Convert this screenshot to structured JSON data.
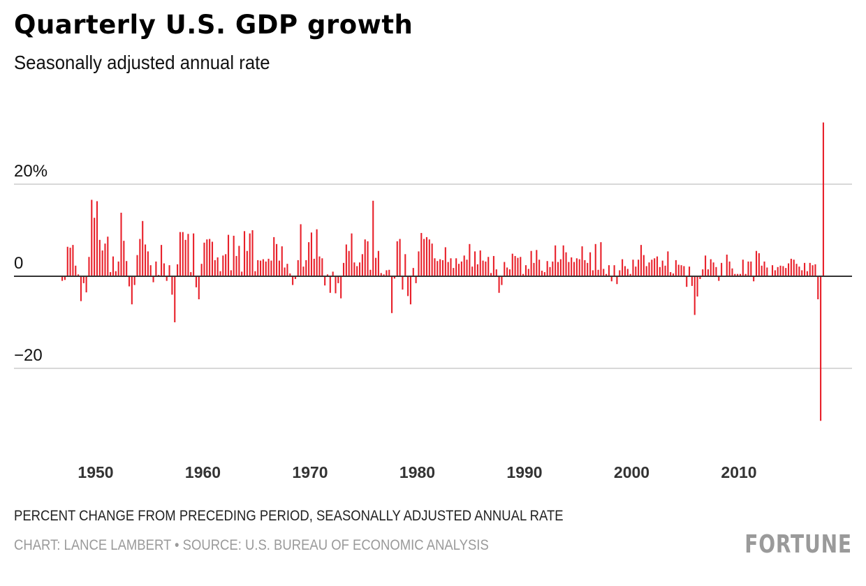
{
  "header": {
    "title": "Quarterly U.S. GDP growth",
    "subtitle": "Seasonally adjusted annual rate"
  },
  "footer": {
    "note": "PERCENT CHANGE FROM PRECEDING PERIOD, SEASONALLY ADJUSTED ANNUAL RATE",
    "source": "CHART: LANCE LAMBERT • SOURCE: U.S. BUREAU OF ECONOMIC ANALYSIS",
    "logo": "FORTUNE"
  },
  "colors": {
    "bar": "#e8202a",
    "grid": "#cccccc",
    "zero": "#333333"
  },
  "chart_data": {
    "type": "bar",
    "title": "Quarterly U.S. GDP growth",
    "subtitle": "Seasonally adjusted annual rate",
    "xlabel": "",
    "ylabel": "Percent change from preceding period, seasonally adjusted annual rate",
    "ylim": [
      -32,
      34
    ],
    "yticks": [
      {
        "value": 20,
        "label": "20%"
      },
      {
        "value": 0,
        "label": "0"
      },
      {
        "value": -20,
        "label": "−20"
      }
    ],
    "xticks": [
      "1950",
      "1960",
      "1970",
      "1980",
      "1990",
      "2000",
      "2010"
    ],
    "xtick_years": [
      1950,
      1960,
      1970,
      1980,
      1990,
      2000,
      2010
    ],
    "start": "1947Q2",
    "end": "2020Q3",
    "grid": true,
    "values": [
      -1.0,
      -0.8,
      6.4,
      6.2,
      6.8,
      2.3,
      0.4,
      -5.4,
      -1.5,
      -3.5,
      4.2,
      16.6,
      12.7,
      16.3,
      7.9,
      5.6,
      7.1,
      8.6,
      0.9,
      4.3,
      1.1,
      3.2,
      13.8,
      7.7,
      3.3,
      -2.2,
      -6.1,
      -1.9,
      4.6,
      8.1,
      12.0,
      6.9,
      5.4,
      2.4,
      -1.3,
      3.2,
      0.3,
      6.8,
      2.8,
      -1.0,
      2.4,
      -4.0,
      -10.0,
      2.6,
      9.6,
      9.6,
      7.9,
      9.2,
      0.9,
      9.3,
      -2.4,
      -5.0,
      2.7,
      7.3,
      8.0,
      8.1,
      7.5,
      3.5,
      4.1,
      1.1,
      4.5,
      4.8,
      9.0,
      1.3,
      8.8,
      4.4,
      6.6,
      1.0,
      9.8,
      5.5,
      9.3,
      10.0,
      1.1,
      3.5,
      3.4,
      3.7,
      3.2,
      3.8,
      3.4,
      8.5,
      7.0,
      3.4,
      6.5,
      1.9,
      2.7,
      0.6,
      -1.9,
      -0.6,
      3.5,
      11.3,
      2.1,
      3.5,
      7.4,
      9.5,
      3.8,
      10.2,
      4.3,
      3.9,
      -2.0,
      0.4,
      -3.6,
      1.0,
      -3.7,
      -1.5,
      -4.8,
      2.9,
      6.9,
      5.5,
      9.3,
      3.0,
      2.2,
      3.0,
      4.8,
      8.0,
      7.6,
      1.4,
      16.4,
      4.0,
      5.5,
      0.7,
      0.4,
      1.3,
      1.4,
      -8.0,
      -0.5,
      7.6,
      8.1,
      -2.9,
      4.8,
      -4.3,
      -6.1,
      1.8,
      -1.5,
      5.4,
      9.4,
      8.1,
      8.5,
      8.0,
      7.1,
      3.9,
      3.3,
      3.7,
      3.5,
      6.3,
      3.1,
      3.9,
      1.8,
      3.9,
      2.7,
      3.2,
      4.5,
      3.6,
      7.0,
      2.1,
      5.4,
      2.6,
      5.6,
      3.4,
      3.2,
      4.2,
      0.7,
      4.4,
      1.5,
      -3.6,
      -1.9,
      3.1,
      1.9,
      1.5,
      4.9,
      4.4,
      4.0,
      4.2,
      0.5,
      2.4,
      1.6,
      5.5,
      2.9,
      5.7,
      3.6,
      1.2,
      0.9,
      3.3,
      2.0,
      3.2,
      6.7,
      3.1,
      3.7,
      6.7,
      5.2,
      3.1,
      4.1,
      3.1,
      3.9,
      3.7,
      6.5,
      3.5,
      2.9,
      5.2,
      1.3,
      7.0,
      1.4,
      7.4,
      1.6,
      0.5,
      2.4,
      -1.1,
      2.4,
      -1.7,
      1.3,
      3.7,
      2.2,
      1.6,
      0.5,
      3.6,
      2.1,
      3.6,
      6.8,
      4.6,
      2.2,
      3.0,
      3.6,
      3.9,
      4.3,
      2.0,
      3.4,
      2.3,
      5.4,
      0.9,
      0.6,
      3.5,
      2.5,
      2.4,
      2.2,
      -2.3,
      2.1,
      -2.1,
      -8.4,
      -4.4,
      -0.6,
      1.5,
      4.5,
      1.5,
      3.7,
      3.0,
      2.0,
      -1.0,
      2.9,
      -0.1,
      4.7,
      3.2,
      1.7,
      0.5,
      0.5,
      0.5,
      3.6,
      0.5,
      3.2,
      3.2,
      -1.1,
      5.5,
      5.0,
      2.3,
      3.2,
      1.9,
      0.1,
      2.4,
      1.3,
      2.0,
      2.3,
      2.2,
      1.8,
      2.8,
      3.8,
      3.6,
      2.7,
      2.1,
      1.3,
      2.9,
      1.1,
      2.9,
      2.4,
      2.6,
      -5.0,
      -31.4,
      33.4
    ]
  }
}
